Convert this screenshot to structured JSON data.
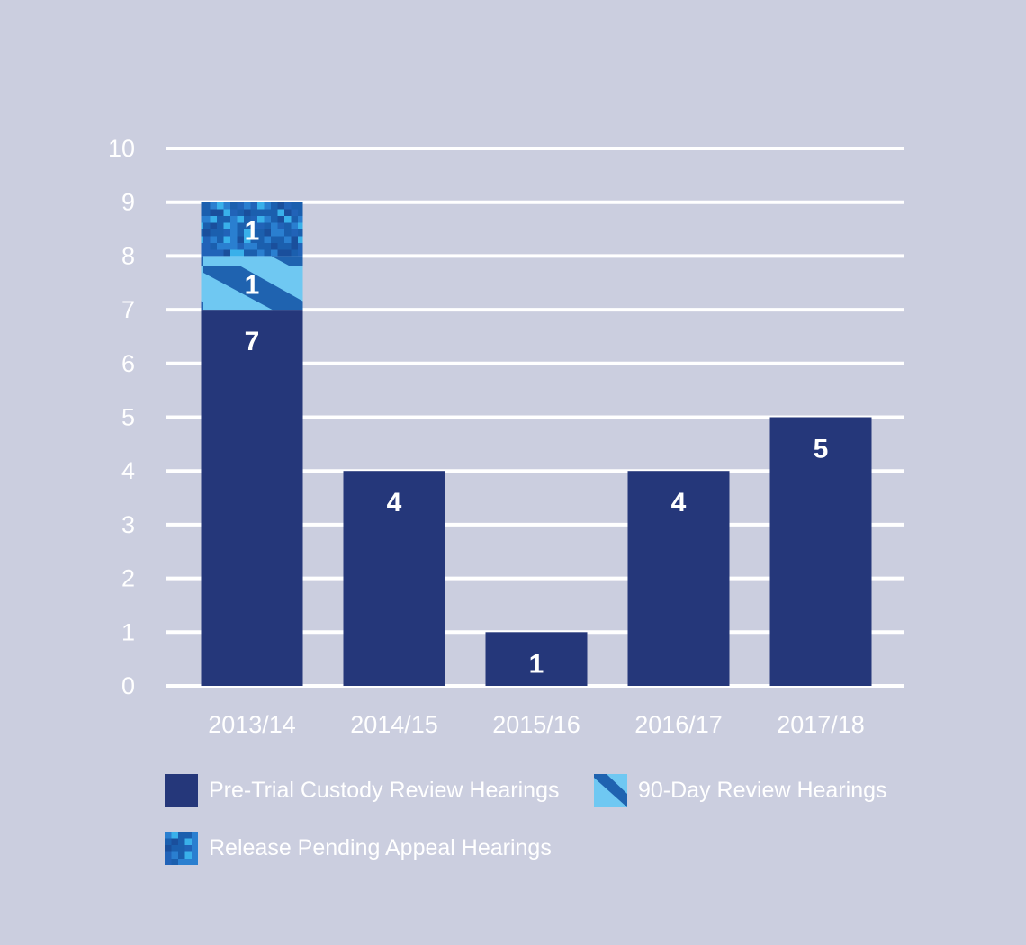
{
  "chart_data": {
    "type": "bar",
    "stacked": true,
    "categories": [
      "2013/14",
      "2014/15",
      "2015/16",
      "2016/17",
      "2017/18"
    ],
    "series": [
      {
        "name": "Pre-Trial Custody Review Hearings",
        "values": [
          7,
          4,
          1,
          4,
          5
        ],
        "color": "#25377a",
        "pattern": "solid"
      },
      {
        "name": "90-Day Review Hearings",
        "values": [
          1,
          0,
          0,
          0,
          0
        ],
        "color": "#1f63b0",
        "pattern": "diagonal-stripes"
      },
      {
        "name": "Release Pending Appeal Hearings",
        "values": [
          1,
          0,
          0,
          0,
          0
        ],
        "color": "#1b5fae",
        "pattern": "pixel-mosaic"
      }
    ],
    "data_labels": [
      [
        "7",
        "4",
        "1",
        "4",
        "5"
      ],
      [
        "1",
        "",
        "",
        "",
        ""
      ],
      [
        "1",
        "",
        "",
        "",
        ""
      ]
    ],
    "y_ticks": [
      "0",
      "1",
      "2",
      "3",
      "4",
      "5",
      "6",
      "7",
      "8",
      "9",
      "10"
    ],
    "ylim": [
      0,
      10
    ],
    "grid": true,
    "legend_position": "bottom",
    "colors": {
      "background": "#cbcedf",
      "gridline": "#ffffff",
      "text": "#ffffff",
      "stripe_light": "#6fc8f2",
      "mosaic_light": "#39b0ea"
    }
  }
}
